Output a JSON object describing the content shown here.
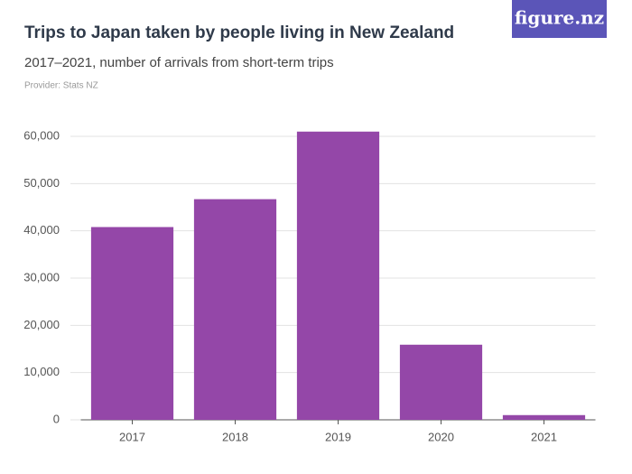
{
  "logo": "figure.nz",
  "chart_data": {
    "type": "bar",
    "title": "Trips to Japan taken by people living in New Zealand",
    "subtitle": "2017–2021, number of arrivals from short-term trips",
    "provider": "Provider: Stats NZ",
    "categories": [
      "2017",
      "2018",
      "2019",
      "2020",
      "2021"
    ],
    "values": [
      40800,
      46700,
      61000,
      15900,
      1000
    ],
    "color": "#9447a8",
    "ylim": [
      0,
      60000
    ],
    "yticks": [
      0,
      {
        "value": 10000,
        "label": "10,000"
      },
      {
        "value": 20000,
        "label": "20,000"
      },
      {
        "value": 30000,
        "label": "30,000"
      },
      {
        "value": 40000,
        "label": "40,000"
      },
      {
        "value": 50000,
        "label": "50,000"
      },
      {
        "value": 60000,
        "label": "60,000"
      }
    ],
    "grid": true
  }
}
